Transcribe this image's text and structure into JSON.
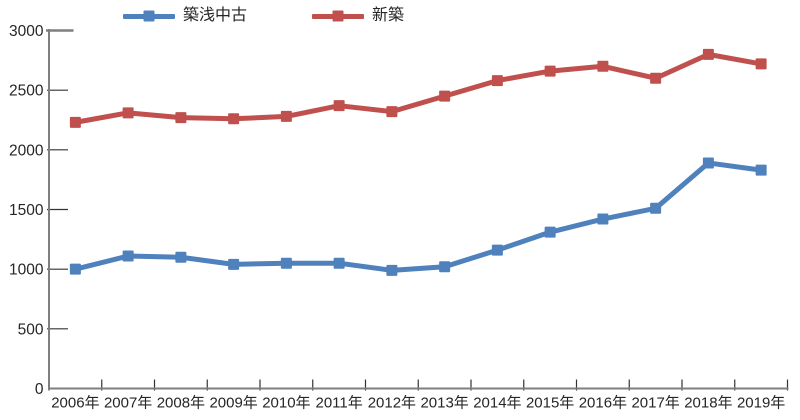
{
  "chart": {
    "legend_items": [
      {
        "label": "築浅中古"
      },
      {
        "label": "新築"
      }
    ]
  },
  "chart_data": {
    "type": "line",
    "title": "",
    "xlabel": "",
    "ylabel": "",
    "categories": [
      "2006年",
      "2007年",
      "2008年",
      "2009年",
      "2010年",
      "2011年",
      "2012年",
      "2013年",
      "2014年",
      "2015年",
      "2016年",
      "2017年",
      "2018年",
      "2019年"
    ],
    "series": [
      {
        "name": "築浅中古",
        "color": "#4f81bd",
        "values": [
          1000,
          1110,
          1100,
          1040,
          1050,
          1050,
          990,
          1020,
          1160,
          1310,
          1420,
          1510,
          1890,
          1830
        ]
      },
      {
        "name": "新築",
        "color": "#c0504d",
        "values": [
          2230,
          2310,
          2270,
          2260,
          2280,
          2370,
          2320,
          2450,
          2580,
          2660,
          2700,
          2600,
          2800,
          2720
        ]
      }
    ],
    "ylim": [
      0,
      3000
    ],
    "yticks": [
      0,
      500,
      1000,
      1500,
      2000,
      2500,
      3000
    ],
    "grid": false,
    "legend_position": "top",
    "marker": "square",
    "line_width": 5,
    "marker_size": 11,
    "axis_color": "#7f7f7f",
    "tick_color": "#333333",
    "label_color": "#262626"
  }
}
